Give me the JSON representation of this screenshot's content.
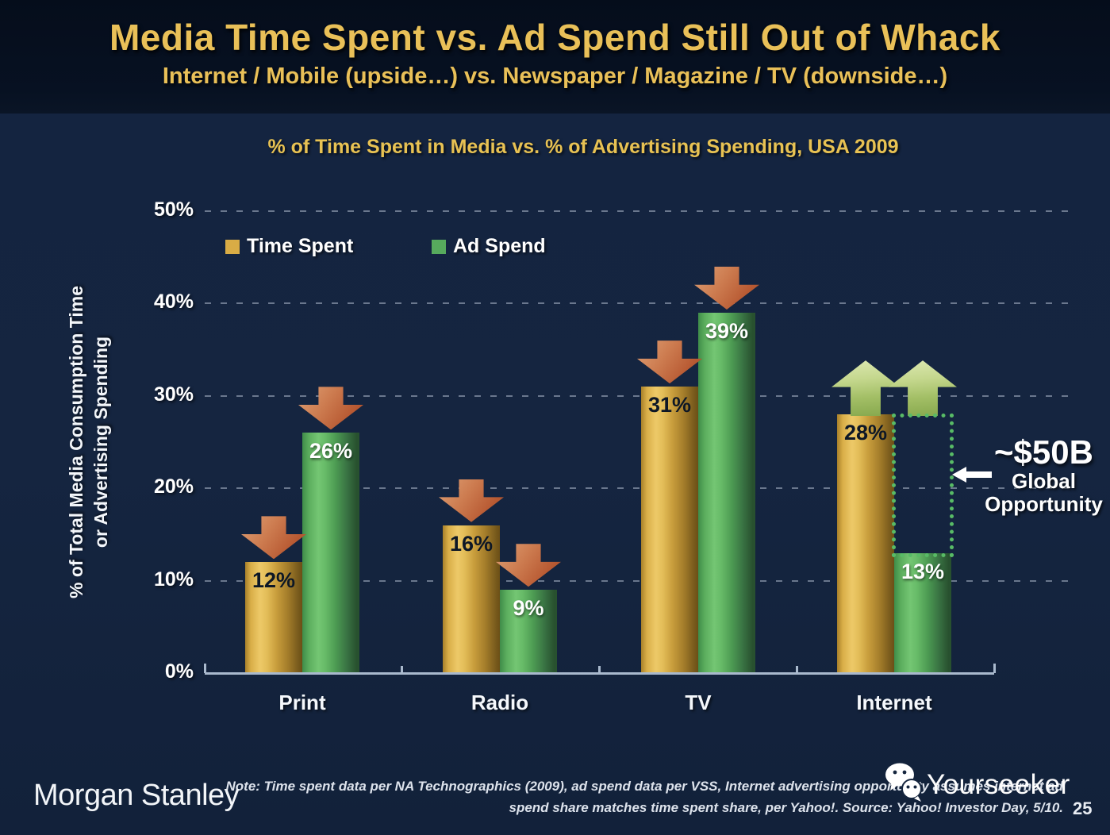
{
  "colors": {
    "header_bg": "#071122",
    "body_bg": "#15253e",
    "accent_gold": "#e9c058",
    "bar_time_spent": "#d9ac45",
    "bar_ad_spend": "#57aa5d",
    "trend_down_arrow": "#c06a3e",
    "trend_up_arrow": "#a9c36c",
    "gap_rect_border": "#58bb66",
    "axis": "#a9b9cd",
    "text_white": "#ffffff"
  },
  "header": {
    "title": "Media Time Spent vs. Ad Spend Still Out of Whack",
    "subtitle": "Internet / Mobile (upside…) vs. Newspaper / Magazine / TV (downside…)"
  },
  "chart": {
    "title": "% of Time Spent in Media vs. % of Advertising Spending, USA 2009",
    "y_axis_label_line1": "% of Total Media Consumption Time",
    "y_axis_label_line2": "or Advertising Spending",
    "legend": [
      {
        "label": "Time Spent",
        "color": "#d9ac45"
      },
      {
        "label": "Ad Spend",
        "color": "#57aa5d"
      }
    ]
  },
  "chart_data": {
    "type": "bar",
    "title": "% of Time Spent in Media vs. % of Advertising Spending, USA 2009",
    "categories": [
      "Print",
      "Radio",
      "TV",
      "Internet"
    ],
    "series": [
      {
        "name": "Time Spent",
        "values": [
          12,
          16,
          31,
          28
        ],
        "color": "#d9ac45"
      },
      {
        "name": "Ad Spend",
        "values": [
          26,
          9,
          39,
          13
        ],
        "color": "#57aa5d"
      }
    ],
    "unit": "%",
    "ylabel": "% of Total Media Consumption Time or Advertising Spending",
    "ylim": [
      0,
      50
    ],
    "yticks": [
      0,
      10,
      20,
      30,
      40,
      50
    ],
    "grid": "dashed-horizontal",
    "legend_position": "top-left-inside",
    "trend_arrows": {
      "Print": "down",
      "Radio": "down",
      "TV": "down",
      "Internet": "up"
    },
    "gap_annotation_category": "Internet"
  },
  "annotation": {
    "amount": "~$50B",
    "label_line1": "Global",
    "label_line2": "Opportunity"
  },
  "footer": {
    "brand": "Morgan Stanley",
    "note_line1": "Note: Time spent data per NA Technographics (2009), ad spend data per VSS, Internet advertising opportunity assumes internet ad",
    "note_line2": "spend share matches time spent share, per Yahoo!. Source: Yahoo! Investor Day, 5/10.",
    "watermark": "Yourseeker",
    "page_number": "25"
  }
}
